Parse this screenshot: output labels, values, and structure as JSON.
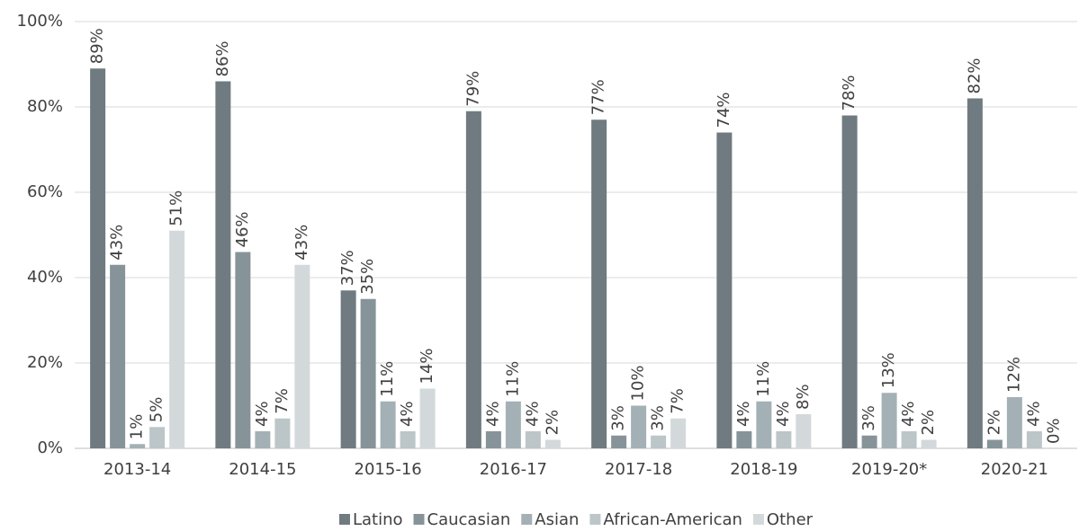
{
  "chart_data": {
    "type": "bar",
    "categories": [
      "2013-14",
      "2014-15",
      "2015-16",
      "2016-17",
      "2017-18",
      "2018-19",
      "2019-20*",
      "2020-21"
    ],
    "series": [
      {
        "name": "Latino",
        "color": "#6f7b80",
        "values": [
          89,
          86,
          37,
          79,
          77,
          74,
          78,
          82
        ],
        "value_labels": [
          "89%",
          "86%",
          "37%",
          "79%",
          "77%",
          "74%",
          "78%",
          "82%"
        ]
      },
      {
        "name": "Caucasian",
        "color": "#86949a",
        "values": [
          43,
          46,
          35,
          4,
          3,
          4,
          3,
          2
        ],
        "value_labels": [
          "43%",
          "46%",
          "35%",
          "4%",
          "3%",
          "4%",
          "3%",
          "2%"
        ]
      },
      {
        "name": "Asian",
        "color": "#a3b1b6",
        "values": [
          1,
          4,
          11,
          11,
          10,
          11,
          13,
          12
        ],
        "value_labels": [
          "1%",
          "4%",
          "11%",
          "11%",
          "10%",
          "11%",
          "13%",
          "12%"
        ]
      },
      {
        "name": "African-American",
        "color": "#bcc6c9",
        "values": [
          5,
          7,
          4,
          4,
          3,
          4,
          4,
          4
        ],
        "value_labels": [
          "5%",
          "7%",
          "4%",
          "4%",
          "3%",
          "4%",
          "4%",
          "4%"
        ]
      },
      {
        "name": "Other",
        "color": "#d3d9db",
        "values": [
          51,
          43,
          14,
          2,
          7,
          8,
          2,
          0
        ],
        "value_labels": [
          "51%",
          "43%",
          "14%",
          "2%",
          "7%",
          "8%",
          "2%",
          "0%"
        ]
      }
    ],
    "ylim": [
      0,
      100
    ],
    "yticks": [
      {
        "value": 0,
        "label": "0%"
      },
      {
        "value": 20,
        "label": "20%"
      },
      {
        "value": 40,
        "label": "40%"
      },
      {
        "value": 60,
        "label": "60%"
      },
      {
        "value": 80,
        "label": "80%"
      },
      {
        "value": 100,
        "label": "100%"
      }
    ],
    "grid": true,
    "legend": "bottom"
  }
}
